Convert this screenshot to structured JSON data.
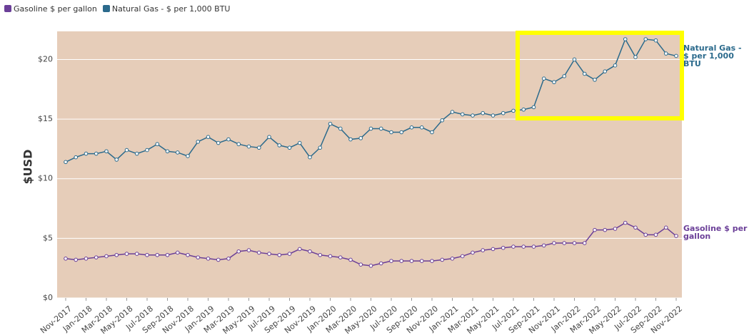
{
  "chart_data": {
    "type": "line",
    "y_label": "$USD",
    "categories": [
      "Nov-2017",
      null,
      "Jan-2018",
      null,
      "Mar-2018",
      null,
      "May-2018",
      null,
      "Jul-2018",
      null,
      "Sep-2018",
      null,
      "Nov-2018",
      null,
      "Jan-2019",
      null,
      "Mar-2019",
      null,
      "May-2019",
      null,
      "Jul-2019",
      null,
      "Sep-2019",
      null,
      "Nov-2019",
      null,
      "Jan-2020",
      null,
      "Mar-2020",
      null,
      "May-2020",
      null,
      "Jul-2020",
      null,
      "Sep-2020",
      null,
      "Nov-2020",
      null,
      "Jan-2021",
      null,
      "Mar-2021",
      null,
      "May-2021",
      null,
      "Jul-2021",
      null,
      "Sep-2021",
      null,
      "Nov-2021",
      null,
      "Jan-2022",
      null,
      "Mar-2022",
      null,
      "May-2022",
      null,
      "Jul-2022",
      null,
      "Sep-2022",
      null,
      "Nov-2022"
    ],
    "series": [
      {
        "name": "Gasoline $ per gallon",
        "color": "#6b3f98",
        "values": [
          3.3,
          3.2,
          3.3,
          3.4,
          3.5,
          3.6,
          3.7,
          3.7,
          3.6,
          3.6,
          3.6,
          3.8,
          3.6,
          3.4,
          3.3,
          3.2,
          3.3,
          3.9,
          4.0,
          3.8,
          3.7,
          3.6,
          3.7,
          4.1,
          3.9,
          3.6,
          3.5,
          3.4,
          3.2,
          2.8,
          2.7,
          2.9,
          3.1,
          3.1,
          3.1,
          3.1,
          3.1,
          3.2,
          3.3,
          3.5,
          3.8,
          4.0,
          4.1,
          4.2,
          4.3,
          4.3,
          4.3,
          4.4,
          4.6,
          4.6,
          4.6,
          4.6,
          5.7,
          5.7,
          5.8,
          6.3,
          5.9,
          5.3,
          5.3,
          5.9,
          5.2
        ]
      },
      {
        "name": "Natural Gas - $ per 1,000 BTU",
        "color": "#2b6a8c",
        "values": [
          11.4,
          11.8,
          12.1,
          12.1,
          12.3,
          11.6,
          12.4,
          12.1,
          12.4,
          12.9,
          12.3,
          12.2,
          11.9,
          13.1,
          13.5,
          13.0,
          13.3,
          12.9,
          12.7,
          12.6,
          13.5,
          12.8,
          12.6,
          13.0,
          11.8,
          12.6,
          14.6,
          14.2,
          13.3,
          13.4,
          14.2,
          14.2,
          13.9,
          13.9,
          14.3,
          14.3,
          13.9,
          14.9,
          15.6,
          15.4,
          15.3,
          15.5,
          15.3,
          15.5,
          15.7,
          15.8,
          16.0,
          18.4,
          18.1,
          18.6,
          20.0,
          18.8,
          18.3,
          19.0,
          19.5,
          21.7,
          20.2,
          21.7,
          21.6,
          20.5,
          20.3
        ]
      }
    ],
    "ylim": [
      0,
      22
    ],
    "yticks": [
      {
        "value": 0,
        "label": "$0"
      },
      {
        "value": 5,
        "label": "$5"
      },
      {
        "value": 10,
        "label": "$10"
      },
      {
        "value": 15,
        "label": "$15"
      },
      {
        "value": 20,
        "label": "$20"
      }
    ],
    "grid": true,
    "legend": "top-left",
    "background": "#e6cdb9"
  }
}
